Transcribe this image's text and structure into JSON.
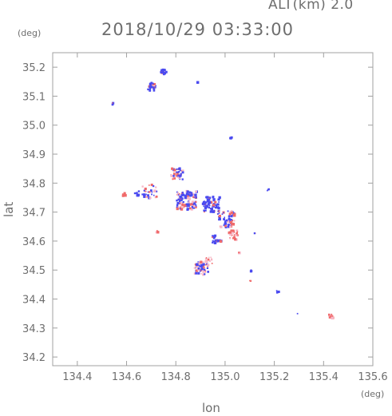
{
  "header": {
    "altitude": "ALT(km) 2.0",
    "datetime": "2018/10/29 03:33:00"
  },
  "chart_data": {
    "type": "scatter",
    "xlabel": "lon",
    "ylabel": "lat",
    "x_unit": "(deg)",
    "y_unit": "(deg)",
    "xlim": [
      134.3,
      135.6
    ],
    "ylim": [
      34.17,
      35.25
    ],
    "x_ticks": [
      "134.4",
      "134.6",
      "134.8",
      "135.0",
      "135.2",
      "135.4",
      "135.6"
    ],
    "y_ticks": [
      "34.2",
      "34.3",
      "34.4",
      "34.5",
      "34.6",
      "34.7",
      "34.8",
      "34.9",
      "35.0",
      "35.1",
      "35.2"
    ],
    "grid": false,
    "colors": {
      "approaching": "#4a4af0",
      "receding": "#f06a6a",
      "weak": "#f7b8c8",
      "axis": "#a0a0a0"
    },
    "clusters": [
      {
        "x": 134.745,
        "y": 35.188,
        "spread": 0.012,
        "n": 14,
        "mix": "blue"
      },
      {
        "x": 134.7,
        "y": 35.135,
        "spread": 0.02,
        "n": 22,
        "mix": "blue"
      },
      {
        "x": 134.885,
        "y": 35.152,
        "spread": 0.002,
        "n": 1,
        "mix": "blue"
      },
      {
        "x": 134.54,
        "y": 35.078,
        "spread": 0.004,
        "n": 3,
        "mix": "blue"
      },
      {
        "x": 135.02,
        "y": 34.96,
        "spread": 0.004,
        "n": 3,
        "mix": "blue"
      },
      {
        "x": 134.8,
        "y": 34.835,
        "spread": 0.025,
        "n": 40,
        "mix": "mixed"
      },
      {
        "x": 134.69,
        "y": 34.775,
        "spread": 0.03,
        "n": 30,
        "mix": "mixed"
      },
      {
        "x": 134.585,
        "y": 34.765,
        "spread": 0.006,
        "n": 5,
        "mix": "red"
      },
      {
        "x": 134.64,
        "y": 34.77,
        "spread": 0.01,
        "n": 6,
        "mix": "blue"
      },
      {
        "x": 134.84,
        "y": 34.745,
        "spread": 0.04,
        "n": 110,
        "mix": "mixed"
      },
      {
        "x": 134.94,
        "y": 34.73,
        "spread": 0.035,
        "n": 70,
        "mix": "blue"
      },
      {
        "x": 135.0,
        "y": 34.68,
        "spread": 0.035,
        "n": 60,
        "mix": "mixed"
      },
      {
        "x": 134.96,
        "y": 34.61,
        "spread": 0.02,
        "n": 25,
        "mix": "blue"
      },
      {
        "x": 135.03,
        "y": 34.625,
        "spread": 0.02,
        "n": 25,
        "mix": "red"
      },
      {
        "x": 135.17,
        "y": 34.78,
        "spread": 0.004,
        "n": 3,
        "mix": "blue"
      },
      {
        "x": 135.12,
        "y": 34.63,
        "spread": 0.004,
        "n": 2,
        "mix": "blue"
      },
      {
        "x": 134.72,
        "y": 34.635,
        "spread": 0.004,
        "n": 3,
        "mix": "red"
      },
      {
        "x": 135.05,
        "y": 34.565,
        "spread": 0.003,
        "n": 2,
        "mix": "red"
      },
      {
        "x": 134.9,
        "y": 34.51,
        "spread": 0.028,
        "n": 55,
        "mix": "mixed"
      },
      {
        "x": 134.93,
        "y": 34.535,
        "spread": 0.015,
        "n": 14,
        "mix": "weak"
      },
      {
        "x": 135.1,
        "y": 34.5,
        "spread": 0.004,
        "n": 3,
        "mix": "blue"
      },
      {
        "x": 135.1,
        "y": 34.465,
        "spread": 0.003,
        "n": 2,
        "mix": "red"
      },
      {
        "x": 135.21,
        "y": 34.43,
        "spread": 0.006,
        "n": 5,
        "mix": "blue"
      },
      {
        "x": 135.29,
        "y": 34.352,
        "spread": 0.002,
        "n": 1,
        "mix": "blue"
      },
      {
        "x": 135.425,
        "y": 34.345,
        "spread": 0.008,
        "n": 10,
        "mix": "red"
      }
    ]
  }
}
